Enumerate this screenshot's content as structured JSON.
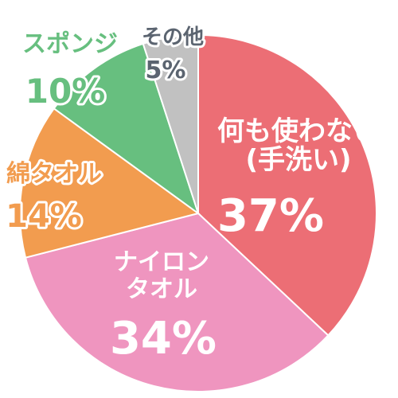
{
  "chart_data": {
    "type": "pie",
    "title": "",
    "slices": [
      {
        "name": "何も使わない\n(手洗い)",
        "value": 37,
        "value_label": "37%",
        "color": "#ec6e75",
        "text_color": "#ffffff"
      },
      {
        "name": "ナイロン\nタオル",
        "value": 34,
        "value_label": "34%",
        "color": "#ef95bf",
        "text_color": "#ffffff"
      },
      {
        "name": "綿タオル",
        "value": 14,
        "value_label": "14%",
        "color": "#f29c4f",
        "text_color": "#f29c4f"
      },
      {
        "name": "スポンジ",
        "value": 10,
        "value_label": "10%",
        "color": "#67bf7f",
        "text_color": "#67bf7f"
      },
      {
        "name": "その他",
        "value": 5,
        "value_label": "5%",
        "color": "#c1c1c1",
        "text_color": "#5b6470"
      }
    ]
  }
}
